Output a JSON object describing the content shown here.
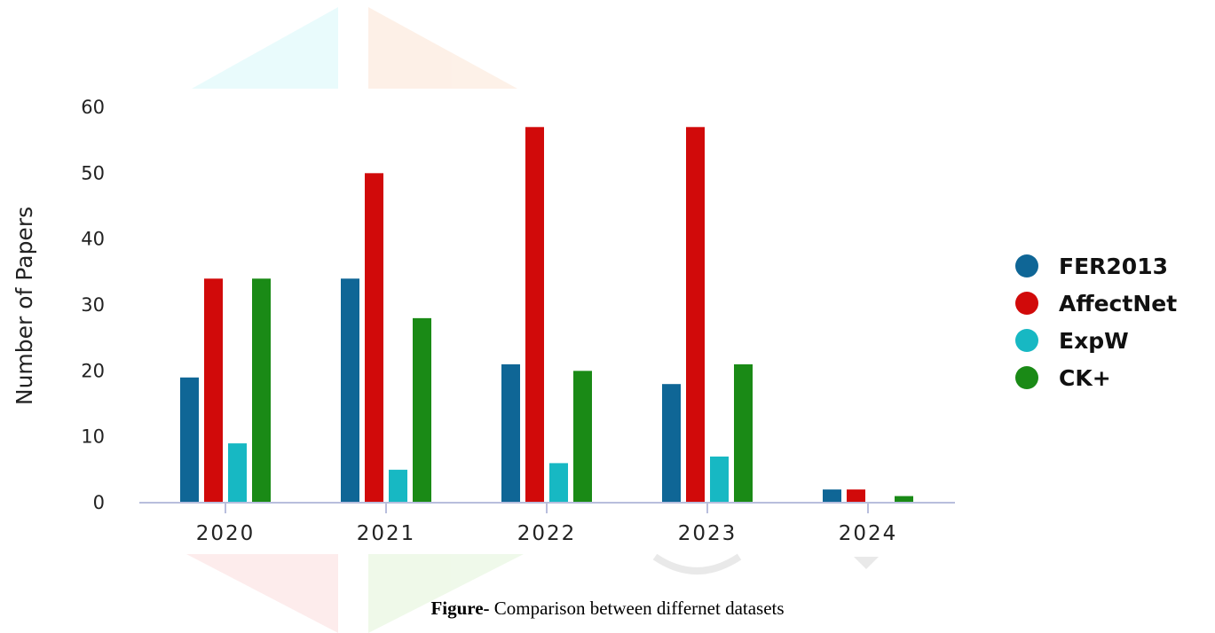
{
  "chart_data": {
    "type": "bar",
    "categories": [
      "2020",
      "2021",
      "2022",
      "2023",
      "2024"
    ],
    "series": [
      {
        "name": "FER2013",
        "color": "#0f6696",
        "values": [
          19,
          34,
          21,
          18,
          2
        ]
      },
      {
        "name": "AffectNet",
        "color": "#d10a0a",
        "values": [
          34,
          50,
          57,
          57,
          2
        ]
      },
      {
        "name": "ExpW",
        "color": "#17b8c3",
        "values": [
          9,
          5,
          6,
          7,
          0
        ]
      },
      {
        "name": "CK+",
        "color": "#1a8a16",
        "values": [
          34,
          28,
          20,
          21,
          1
        ]
      }
    ],
    "ylabel": "Number of Papers",
    "ylim": [
      0,
      60
    ],
    "yticks": [
      0,
      10,
      20,
      30,
      40,
      50,
      60
    ],
    "grid": false,
    "legend_position": "right"
  },
  "caption": {
    "prefix": "Figure-",
    "text": " Comparison between differnet datasets"
  }
}
